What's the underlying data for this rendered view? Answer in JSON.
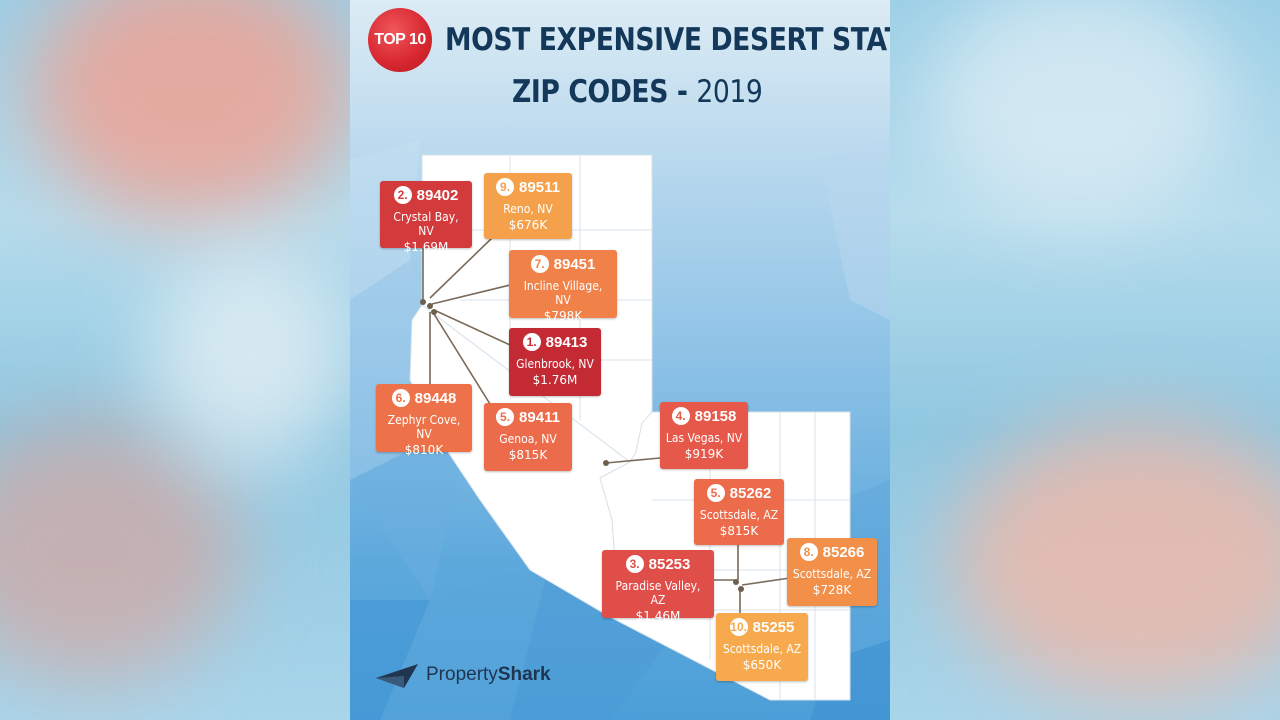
{
  "header": {
    "badge": "TOP 10",
    "title_line1": "MOST EXPENSIVE DESERT STATES",
    "title_line2": "ZIP CODES -",
    "year": "2019"
  },
  "colors": {
    "dark_red": "#c8303a",
    "red": "#e2504c",
    "orange_red": "#ec6a4a",
    "orange": "#f28a48",
    "light_orange": "#f5a34c",
    "title": "#14385a"
  },
  "markers": [
    {
      "rank": "1.",
      "zip": "89413",
      "city": "Glenbrook, NV",
      "price": "$1.76M",
      "color": "#c42a34"
    },
    {
      "rank": "2.",
      "zip": "89402",
      "city": "Crystal Bay, NV",
      "price": "$1.69M",
      "color": "#d23a3c"
    },
    {
      "rank": "3.",
      "zip": "85253",
      "city": "Paradise Valley, AZ",
      "price": "$1.46M",
      "color": "#e04e4a"
    },
    {
      "rank": "4.",
      "zip": "89158",
      "city": "Las Vegas, NV",
      "price": "$919K",
      "color": "#e6594a"
    },
    {
      "rank": "5.",
      "zip": "89411",
      "city": "Genoa, NV",
      "price": "$815K",
      "color": "#ec6b4b"
    },
    {
      "rank": "5.",
      "zip": "85262",
      "city": "Scottsdale, AZ",
      "price": "$815K",
      "color": "#ec6b4b"
    },
    {
      "rank": "6.",
      "zip": "89448",
      "city": "Zephyr Cove, NV",
      "price": "$810K",
      "color": "#ee7249"
    },
    {
      "rank": "7.",
      "zip": "89451",
      "city": "Incline Village, NV",
      "price": "$798K",
      "color": "#f08249"
    },
    {
      "rank": "8.",
      "zip": "85266",
      "city": "Scottsdale, AZ",
      "price": "$728K",
      "color": "#f2904a"
    },
    {
      "rank": "9.",
      "zip": "89511",
      "city": "Reno, NV",
      "price": "$676K",
      "color": "#f5a14c"
    },
    {
      "rank": "10.",
      "zip": "85255",
      "city": "Scottsdale, AZ",
      "price": "$650K",
      "color": "#f6aa4d"
    }
  ],
  "brand": {
    "name_light": "Property",
    "name_bold": "Shark",
    "logo_icon": "shark-logo-icon"
  }
}
